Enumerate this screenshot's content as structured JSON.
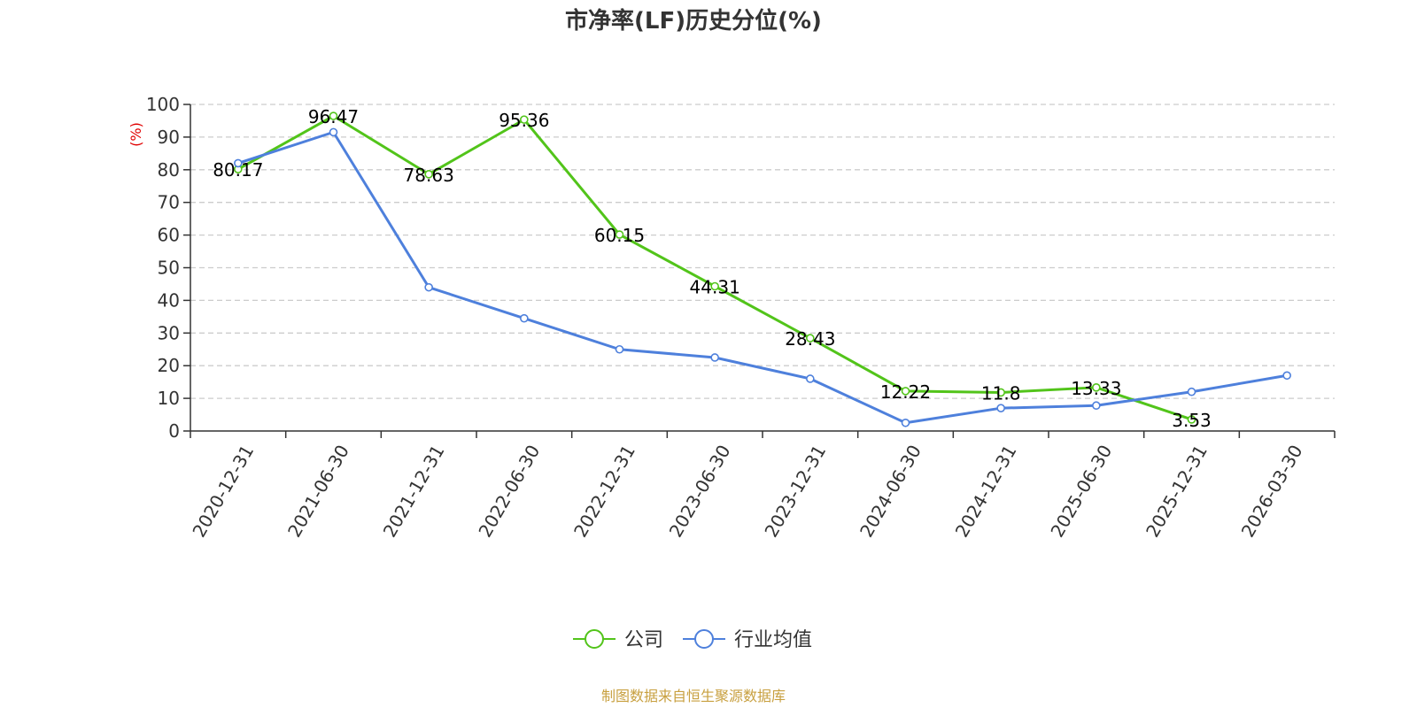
{
  "chart_data": {
    "type": "line",
    "title": "市净率(LF)历史分位(%)",
    "ylabel": "(%)",
    "ylim": [
      0,
      100
    ],
    "yticks": [
      0,
      10,
      20,
      30,
      40,
      50,
      60,
      70,
      80,
      90,
      100
    ],
    "categories": [
      "2020-12-31",
      "2021-06-30",
      "2021-12-31",
      "2022-06-30",
      "2022-12-31",
      "2023-06-30",
      "2023-12-31",
      "2024-06-30",
      "2024-12-31",
      "2025-06-30",
      "2025-12-31",
      "2026-03-30"
    ],
    "series": [
      {
        "name": "公司",
        "color": "#52c41a",
        "values": [
          80.17,
          96.47,
          78.63,
          95.36,
          60.15,
          44.31,
          28.43,
          12.22,
          11.8,
          13.33,
          3.53,
          null
        ],
        "labels": [
          "80.17",
          "96.47",
          "78.63",
          "95.36",
          "60.15",
          "44.31",
          "28.43",
          "12.22",
          "11.8",
          "13.33",
          "3.53",
          null
        ]
      },
      {
        "name": "行业均值",
        "color": "#4e80dc",
        "values": [
          82,
          91.5,
          44,
          34.5,
          25,
          22.5,
          16,
          2.5,
          7,
          7.8,
          12,
          17
        ]
      }
    ],
    "grid": true,
    "legend_position": "bottom-center",
    "unit_color": "#e00000"
  },
  "source_text": "制图数据来自恒生聚源数据库",
  "source_color": "#c8a040"
}
